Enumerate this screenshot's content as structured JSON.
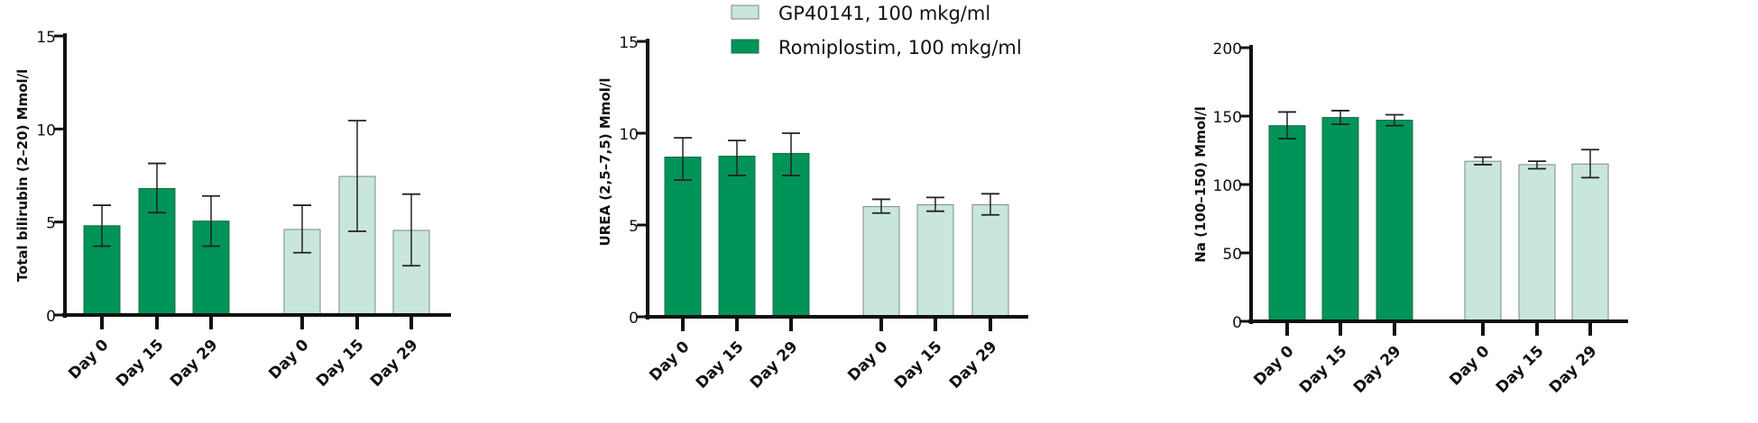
{
  "legend": {
    "placement": "top-center",
    "items": [
      {
        "label": "GP40141, 100 mkg/ml",
        "color": "#c9e6da"
      },
      {
        "label": "Romiplostim, 100 mkg/ml",
        "color": "#009459"
      }
    ]
  },
  "chart_data": [
    {
      "type": "bar",
      "ylabel": "Total bilirubin (2–20) Mmol/l",
      "ylim": [
        0,
        15
      ],
      "yticks": [
        "0",
        "5",
        "10",
        "15"
      ],
      "categories": [
        "Day 0",
        "Day 15",
        "Day 29",
        "Day 0",
        "Day 15",
        "Day 29"
      ],
      "groups": [
        "Romiplostim, 100 mkg/ml",
        "Romiplostim, 100 mkg/ml",
        "Romiplostim, 100 mkg/ml",
        "GP40141, 100 mkg/ml",
        "GP40141, 100 mkg/ml",
        "GP40141, 100 mkg/ml"
      ],
      "values": [
        4.8,
        6.8,
        5.05,
        4.6,
        7.45,
        4.55
      ],
      "error_high": [
        5.9,
        8.15,
        6.4,
        5.9,
        10.45,
        6.5
      ],
      "error_low": [
        3.7,
        5.5,
        3.7,
        3.35,
        4.5,
        2.65
      ],
      "grid": false
    },
    {
      "type": "bar",
      "ylabel": "UREA (2,5–7,5) Mmol/l",
      "ylim": [
        0,
        15
      ],
      "yticks": [
        "0",
        "5",
        "10",
        "15"
      ],
      "categories": [
        "Day 0",
        "Day 15",
        "Day 29",
        "Day 0",
        "Day 15",
        "Day 29"
      ],
      "groups": [
        "Romiplostim, 100 mkg/ml",
        "Romiplostim, 100 mkg/ml",
        "Romiplostim, 100 mkg/ml",
        "GP40141, 100 mkg/ml",
        "GP40141, 100 mkg/ml",
        "GP40141, 100 mkg/ml"
      ],
      "values": [
        8.7,
        8.75,
        8.9,
        6.0,
        6.1,
        6.1
      ],
      "error_high": [
        9.75,
        9.6,
        10.0,
        6.4,
        6.5,
        6.7
      ],
      "error_low": [
        7.45,
        7.7,
        7.7,
        5.65,
        5.75,
        5.55
      ],
      "grid": false
    },
    {
      "type": "bar",
      "ylabel": "Na (100–150) Mmol/l",
      "ylim": [
        0,
        200
      ],
      "yticks": [
        "0",
        "50",
        "100",
        "150",
        "200"
      ],
      "categories": [
        "Day 0",
        "Day 15",
        "Day 29",
        "Day 0",
        "Day 15",
        "Day 29"
      ],
      "groups": [
        "Romiplostim, 100 mkg/ml",
        "Romiplostim, 100 mkg/ml",
        "Romiplostim, 100 mkg/ml",
        "GP40141, 100 mkg/ml",
        "GP40141, 100 mkg/ml",
        "GP40141, 100 mkg/ml"
      ],
      "values": [
        143,
        149,
        147,
        117,
        114.5,
        115
      ],
      "error_high": [
        153,
        154,
        151,
        120,
        117,
        125.5
      ],
      "error_low": [
        133.5,
        144,
        143,
        114.5,
        111.5,
        105
      ],
      "grid": false
    }
  ]
}
